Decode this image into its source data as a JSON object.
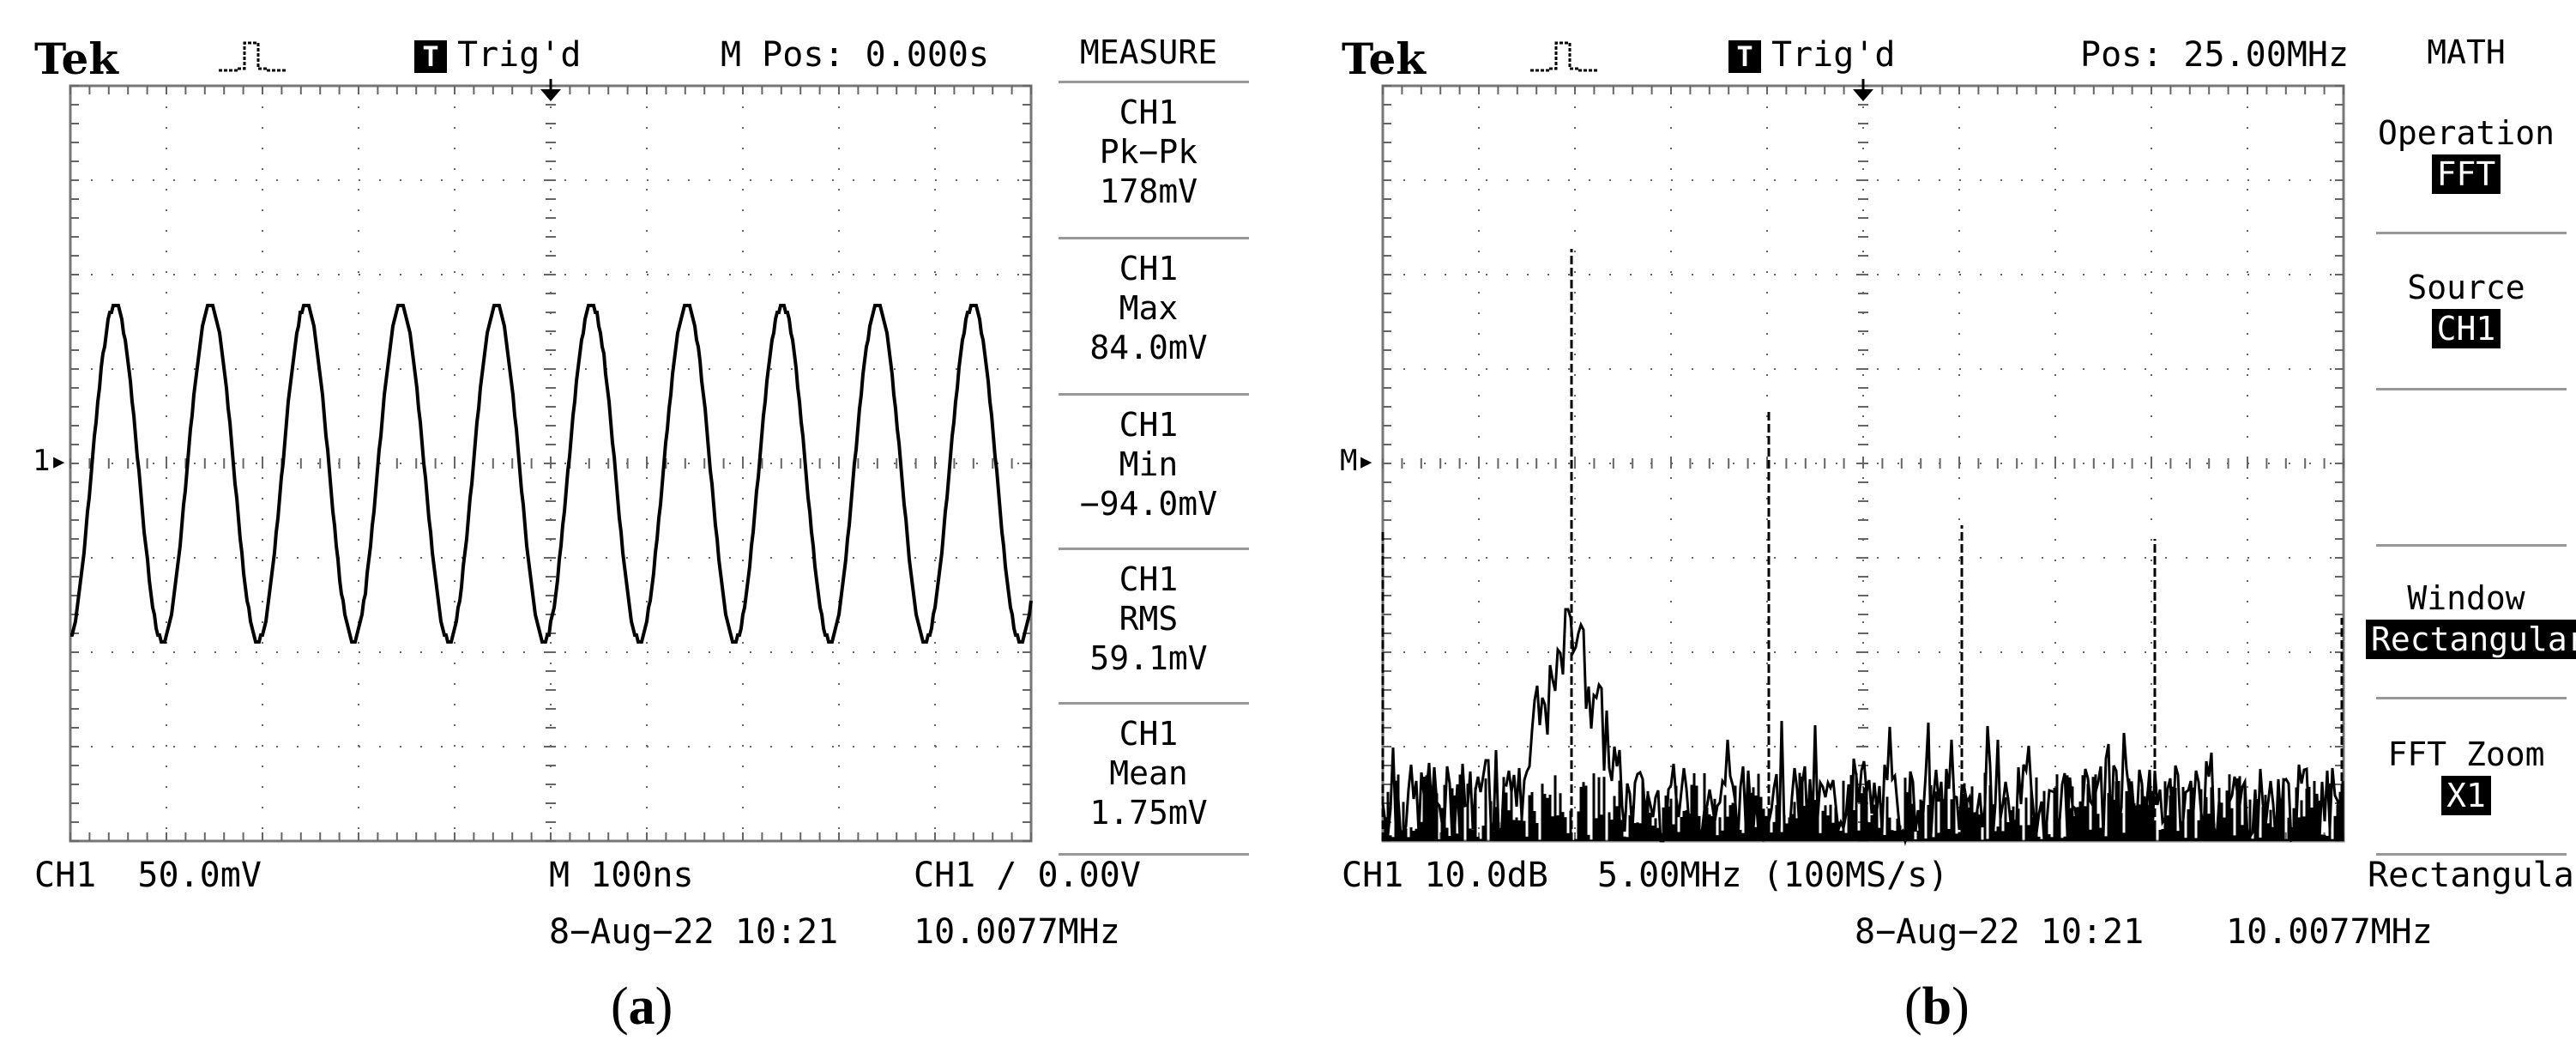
{
  "panel_a": {
    "brand": "Tek",
    "trigger_label": "Trig'd",
    "trigger_box": "T",
    "pos": "M Pos: 0.000s",
    "ch_marker": "1▸",
    "menu_title": "MEASURE",
    "measures": [
      {
        "ch": "CH1",
        "label": "Pk−Pk",
        "value": "178mV"
      },
      {
        "ch": "CH1",
        "label": "Max",
        "value": "84.0mV"
      },
      {
        "ch": "CH1",
        "label": "Min",
        "value": "−94.0mV"
      },
      {
        "ch": "CH1",
        "label": "RMS",
        "value": "59.1mV"
      },
      {
        "ch": "CH1",
        "label": "Mean",
        "value": "1.75mV"
      }
    ],
    "bottom": {
      "scale": "CH1  50.0mV",
      "timebase": "M 100ns",
      "trigger": "CH1 ∕ 0.00V",
      "datetime": "8−Aug−22 10:21",
      "freq": "10.0077MHz"
    },
    "caption_open": "(",
    "caption_letter": "a",
    "caption_close": ")"
  },
  "panel_b": {
    "brand": "Tek",
    "trigger_label": "Trig'd",
    "trigger_box": "T",
    "pos": "Pos: 25.00MHz",
    "math_marker": "M▸",
    "menu_title": "MATH",
    "menu": {
      "operation_label": "Operation",
      "operation_value": "FFT",
      "source_label": "Source",
      "source_value": "CH1",
      "window_label": "Window",
      "window_value": "Rectangular",
      "zoom_label": "FFT Zoom",
      "zoom_value": "X1"
    },
    "bottom": {
      "scale": "CH1 10.0dB",
      "freq_div": "5.00MHz (100MS/s)",
      "window": "Rectangular",
      "datetime": "8−Aug−22 10:21",
      "freq": "10.0077MHz"
    },
    "caption_open": "(",
    "caption_letter": "b",
    "caption_close": ")"
  },
  "colors": {
    "trace": "#000000",
    "grid": "#555555",
    "background": "#ffffff"
  },
  "icons": {
    "trigger_pulse": "pulse-icon",
    "trigger_position": "trigger-arrow-icon"
  }
}
